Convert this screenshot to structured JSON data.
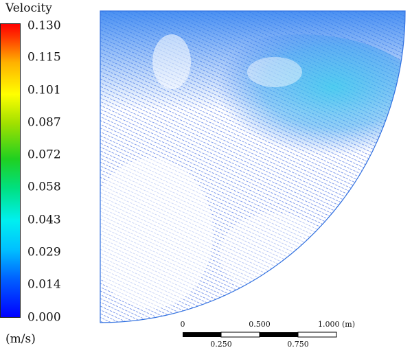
{
  "legend": {
    "title": "Velocity",
    "units": "(m/s)",
    "ticks": [
      "0.130",
      "0.115",
      "0.101",
      "0.087",
      "0.072",
      "0.058",
      "0.043",
      "0.029",
      "0.014",
      "0.000"
    ]
  },
  "scale_bar": {
    "top_labels": [
      "0",
      "0.500",
      "1.000 (m)"
    ],
    "bottom_labels": [
      "0.250",
      "0.750"
    ]
  }
}
